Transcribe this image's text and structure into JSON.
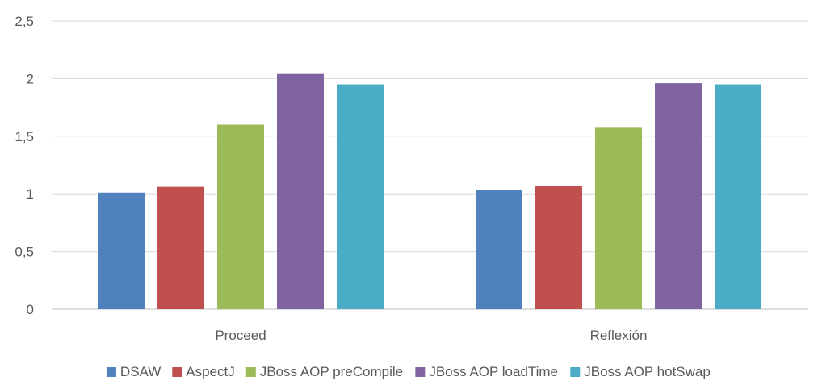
{
  "chart_data": {
    "type": "bar",
    "categories": [
      "Proceed",
      "Reflexión"
    ],
    "series": [
      {
        "name": "DSAW",
        "values": [
          1.01,
          1.03
        ],
        "color": "#4f81bd"
      },
      {
        "name": "AspectJ",
        "values": [
          1.06,
          1.07
        ],
        "color": "#c0504d"
      },
      {
        "name": "JBoss AOP preCompile",
        "values": [
          1.6,
          1.58
        ],
        "color": "#9bbb59"
      },
      {
        "name": "JBoss AOP loadTime",
        "values": [
          2.04,
          1.96
        ],
        "color": "#8064a2"
      },
      {
        "name": "JBoss AOP hotSwap",
        "values": [
          1.95,
          1.95
        ],
        "color": "#4bacc6"
      }
    ],
    "yticks": [
      "0",
      "0,5",
      "1",
      "1,5",
      "2",
      "2,5"
    ],
    "ylim": [
      0,
      2.5
    ],
    "grid": true,
    "legend": "bottom"
  }
}
